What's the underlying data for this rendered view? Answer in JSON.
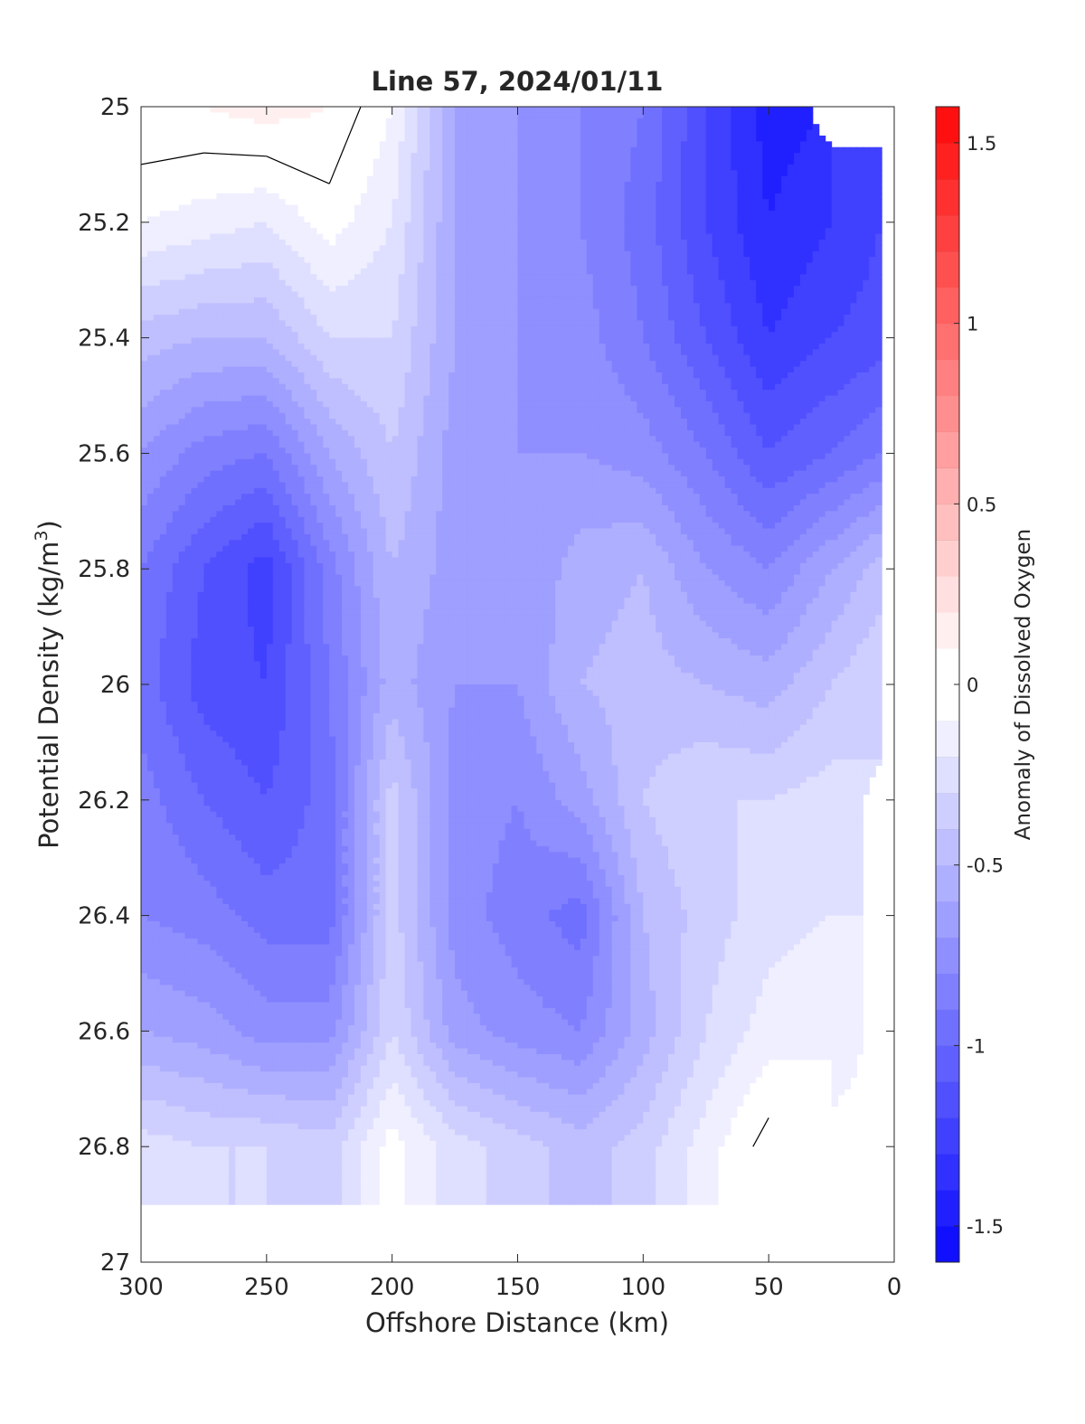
{
  "chart_data": {
    "type": "heatmap",
    "subtype": "filled contour section",
    "title": "Line 57, 2024/01/11",
    "xlabel": "Offshore Distance (km)",
    "ylabel_main": "Potential Density (kg/m",
    "ylabel_sup": "3",
    "ylabel_close": ")",
    "colorbar_label": "Anomaly of Dissolved Oxygen",
    "xlim": [
      300,
      0
    ],
    "x_reversed": true,
    "ylim": [
      25,
      27
    ],
    "y_reversed": true,
    "xticks": [
      300,
      250,
      200,
      150,
      100,
      50,
      0
    ],
    "xtick_labels": [
      "300",
      "250",
      "200",
      "150",
      "100",
      "50",
      "0"
    ],
    "yticks": [
      25,
      25.2,
      25.4,
      25.6,
      25.8,
      26,
      26.2,
      26.4,
      26.6,
      26.8,
      27
    ],
    "ytick_labels": [
      "25",
      "25.2",
      "25.4",
      "25.6",
      "25.8",
      "26",
      "26.2",
      "26.4",
      "26.6",
      "26.8",
      "27"
    ],
    "colorbar": {
      "range": [
        -1.6,
        1.6
      ],
      "step": 0.1,
      "ticks": [
        1.5,
        1,
        0.5,
        0,
        -0.5,
        -1,
        -1.5
      ],
      "tick_labels": [
        "1.5",
        "1",
        "0.5",
        "0",
        "-0.5",
        "-1",
        "-1.5"
      ],
      "neg_color": "#0000ff",
      "pos_color": "#ff0000",
      "zero_color": "#ffffff"
    },
    "zero_contour_color": "#000000",
    "grid": false,
    "legend": "none",
    "sample_grid": {
      "x": [
        300,
        275,
        250,
        225,
        200,
        175,
        150,
        125,
        100,
        75,
        50,
        25,
        5
      ],
      "y": [
        25.0,
        25.2,
        25.4,
        25.6,
        25.8,
        26.0,
        26.2,
        26.4,
        26.6,
        26.8
      ],
      "anomaly": [
        [
          0.1,
          0.1,
          0.15,
          0.1,
          -0.1,
          -0.6,
          -0.7,
          -0.8,
          -0.9,
          -1.2,
          -1.45,
          null,
          null
        ],
        [
          -0.1,
          -0.15,
          -0.2,
          -0.05,
          -0.2,
          -0.6,
          -0.7,
          -0.8,
          -0.95,
          -1.2,
          -1.4,
          -1.3,
          -1.2
        ],
        [
          -0.45,
          -0.5,
          -0.5,
          -0.3,
          -0.3,
          -0.6,
          -0.7,
          -0.75,
          -0.9,
          -1.1,
          -1.3,
          -1.2,
          -1.15
        ],
        [
          -0.7,
          -0.85,
          -0.9,
          -0.6,
          -0.4,
          -0.65,
          -0.7,
          -0.7,
          -0.75,
          -0.9,
          -1.1,
          -1.0,
          -0.9
        ],
        [
          -0.9,
          -1.1,
          -1.25,
          -0.85,
          -0.5,
          -0.65,
          -0.7,
          -0.55,
          -0.5,
          -0.7,
          -0.8,
          -0.6,
          -0.45
        ],
        [
          -0.95,
          -1.15,
          -1.2,
          -0.9,
          -0.55,
          -0.7,
          -0.7,
          -0.5,
          -0.45,
          -0.5,
          -0.55,
          -0.4,
          -0.3
        ],
        [
          -0.85,
          -1.0,
          -1.1,
          -0.95,
          -0.35,
          -0.75,
          -0.8,
          -0.65,
          -0.4,
          -0.3,
          -0.3,
          -0.25,
          null
        ],
        [
          -0.8,
          -0.85,
          -0.95,
          -0.95,
          -0.35,
          -0.75,
          -0.85,
          -0.95,
          -0.5,
          -0.35,
          -0.25,
          -0.2,
          null
        ],
        [
          -0.6,
          -0.65,
          -0.75,
          -0.75,
          -0.3,
          -0.65,
          -0.75,
          -0.8,
          -0.55,
          -0.3,
          -0.15,
          -0.1,
          null
        ],
        [
          -0.25,
          -0.3,
          -0.3,
          -0.35,
          -0.05,
          -0.25,
          -0.35,
          -0.45,
          -0.35,
          -0.15,
          0.05,
          null,
          null
        ]
      ]
    }
  }
}
